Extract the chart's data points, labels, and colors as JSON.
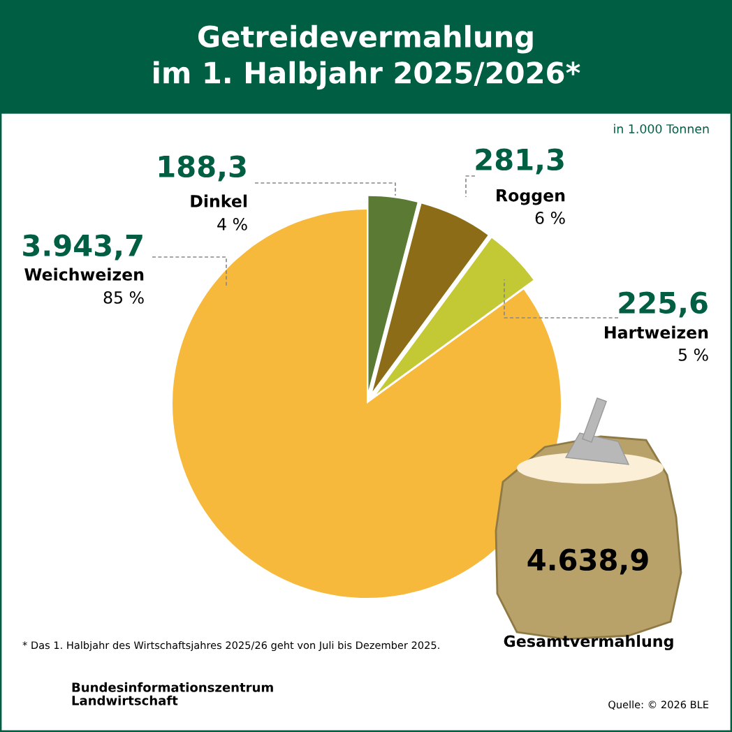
{
  "chart_data": {
    "type": "pie",
    "title": "Getreidevermahlung\nim 1. Halbjahr 2025/2026*",
    "subtitle": "in 1.000 Tonnen",
    "categories": [
      "Dinkel",
      "Roggen",
      "Hartweizen",
      "Weichweizen"
    ],
    "values": [
      188.3,
      281.3,
      225.6,
      3943.7
    ],
    "value_labels": [
      "188,3",
      "281,3",
      "225,6",
      "3.943,7"
    ],
    "colors": [
      "#5b7b34",
      "#8c6c16",
      "#c2c934",
      "#f6b93c"
    ],
    "legend": false,
    "annotations": [
      {
        "text": "4 %",
        "x": "Dinkel"
      },
      {
        "text": "6 %",
        "x": "Roggen"
      },
      {
        "text": "5 %",
        "x": "Hartweizen"
      },
      {
        "text": "85 %",
        "x": "Weichweizen"
      },
      "4.638,9",
      "Gesamtvermahlung",
      "* Das 1. Halbjahr des Wirtschaftsjahres 2025/26 geht von Juli bis Dezember 2025.",
      "Bundesinformationszentrum\nLandwirtschaft",
      "Quelle: © 2026 BLE"
    ]
  }
}
